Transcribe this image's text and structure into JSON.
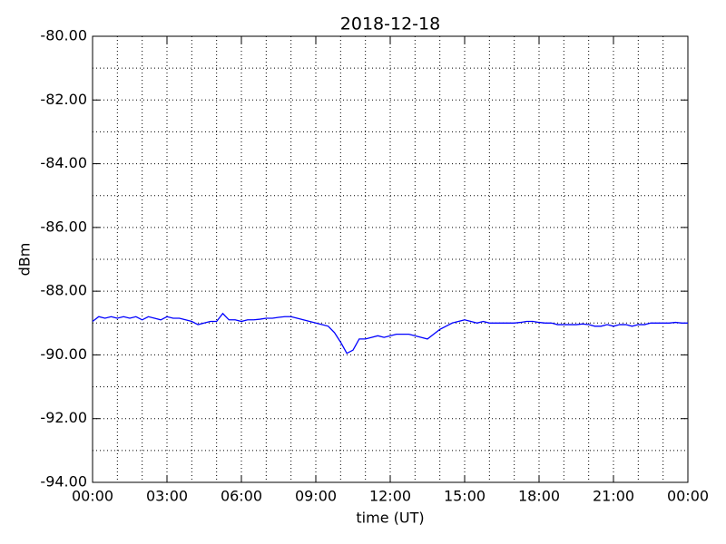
{
  "chart_data": {
    "type": "line",
    "title": "2018-12-18",
    "xlabel": "time (UT)",
    "ylabel": "dBm",
    "x": [
      0,
      0.25,
      0.5,
      0.75,
      1,
      1.25,
      1.5,
      1.75,
      2,
      2.25,
      2.5,
      2.75,
      3,
      3.25,
      3.5,
      3.75,
      4,
      4.25,
      4.5,
      4.75,
      5,
      5.25,
      5.5,
      5.75,
      6,
      6.25,
      6.5,
      6.75,
      7,
      7.25,
      7.5,
      7.75,
      8,
      8.25,
      8.5,
      8.75,
      9,
      9.25,
      9.5,
      9.75,
      10,
      10.25,
      10.5,
      10.75,
      11,
      11.25,
      11.5,
      11.75,
      12,
      12.25,
      12.5,
      12.75,
      13,
      13.25,
      13.5,
      13.75,
      14,
      14.25,
      14.5,
      14.75,
      15,
      15.25,
      15.5,
      15.75,
      16,
      16.25,
      16.5,
      16.75,
      17,
      17.25,
      17.5,
      17.75,
      18,
      18.25,
      18.5,
      18.75,
      19,
      19.25,
      19.5,
      19.75,
      20,
      20.25,
      20.5,
      20.75,
      21,
      21.25,
      21.5,
      21.75,
      22,
      22.25,
      22.5,
      22.75,
      23,
      23.25,
      23.5,
      23.75,
      24
    ],
    "series": [
      {
        "color": "#0000ff",
        "values": [
          -88.95,
          -88.8,
          -88.85,
          -88.8,
          -88.85,
          -88.8,
          -88.85,
          -88.8,
          -88.9,
          -88.8,
          -88.85,
          -88.9,
          -88.8,
          -88.85,
          -88.85,
          -88.9,
          -88.95,
          -89.05,
          -89.0,
          -88.95,
          -88.95,
          -88.7,
          -88.9,
          -88.9,
          -88.95,
          -88.9,
          -88.9,
          -88.88,
          -88.85,
          -88.85,
          -88.82,
          -88.8,
          -88.8,
          -88.85,
          -88.9,
          -88.95,
          -89.0,
          -89.05,
          -89.1,
          -89.3,
          -89.6,
          -89.95,
          -89.85,
          -89.5,
          -89.5,
          -89.45,
          -89.4,
          -89.45,
          -89.4,
          -89.35,
          -89.35,
          -89.35,
          -89.4,
          -89.45,
          -89.5,
          -89.35,
          -89.2,
          -89.1,
          -89.0,
          -88.95,
          -88.9,
          -88.95,
          -89.0,
          -88.95,
          -89.0,
          -89.0,
          -89.0,
          -89.0,
          -89.0,
          -88.98,
          -88.95,
          -88.95,
          -88.98,
          -89.0,
          -89.0,
          -89.05,
          -89.05,
          -89.05,
          -89.05,
          -89.03,
          -89.05,
          -89.1,
          -89.1,
          -89.05,
          -89.1,
          -89.05,
          -89.05,
          -89.1,
          -89.05,
          -89.05,
          -89.0,
          -89.0,
          -89.0,
          -89.0,
          -88.98,
          -89.0,
          -89.0
        ]
      }
    ],
    "xlim": [
      0,
      24
    ],
    "xticks": [
      {
        "value": 0,
        "label": "00:00"
      },
      {
        "value": 3,
        "label": "03:00"
      },
      {
        "value": 6,
        "label": "06:00"
      },
      {
        "value": 9,
        "label": "09:00"
      },
      {
        "value": 12,
        "label": "12:00"
      },
      {
        "value": 15,
        "label": "15:00"
      },
      {
        "value": 18,
        "label": "18:00"
      },
      {
        "value": 21,
        "label": "21:00"
      },
      {
        "value": 24,
        "label": "00:00"
      }
    ],
    "minor_xticks": [
      1,
      2,
      4,
      5,
      7,
      8,
      10,
      11,
      13,
      14,
      16,
      17,
      19,
      20,
      22,
      23
    ],
    "ylim": [
      -94,
      -80
    ],
    "yticks": [
      {
        "value": -94,
        "label": "-94.00"
      },
      {
        "value": -92,
        "label": "-92.00"
      },
      {
        "value": -90,
        "label": "-90.00"
      },
      {
        "value": -88,
        "label": "-88.00"
      },
      {
        "value": -86,
        "label": "-86.00"
      },
      {
        "value": -84,
        "label": "-84.00"
      },
      {
        "value": -82,
        "label": "-82.00"
      },
      {
        "value": -80,
        "label": "-80.00"
      }
    ],
    "minor_yticks": [
      -93,
      -91,
      -89,
      -87,
      -85,
      -83,
      -81
    ],
    "grid": true
  }
}
